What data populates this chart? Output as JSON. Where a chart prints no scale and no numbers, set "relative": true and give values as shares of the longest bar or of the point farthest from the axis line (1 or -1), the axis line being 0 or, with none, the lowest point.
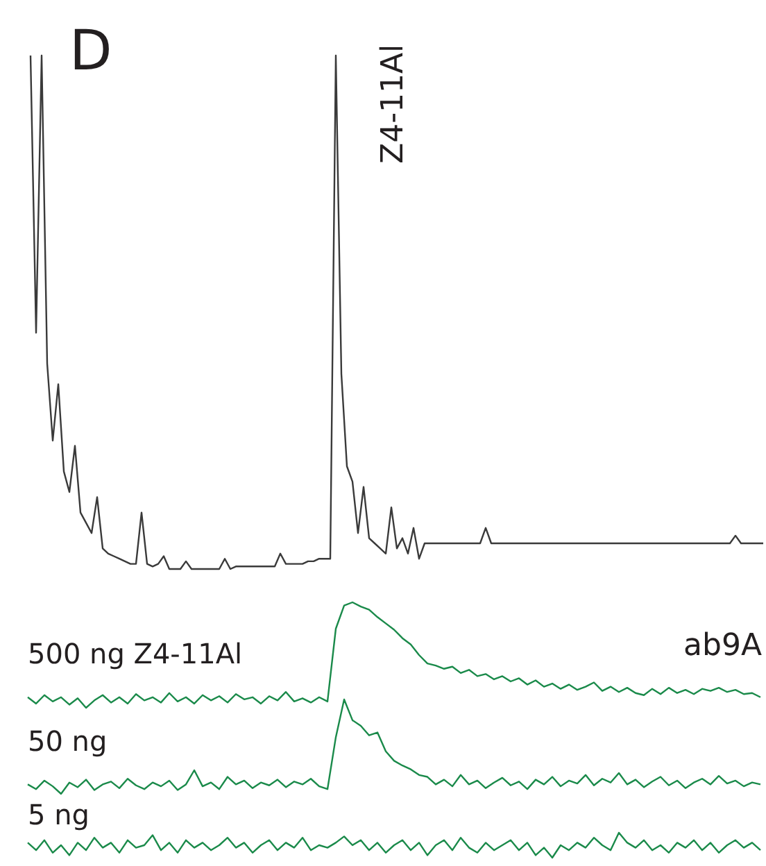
{
  "chart_data": [
    {
      "type": "line",
      "title": "D",
      "annotations": [
        "Z4-11Al"
      ],
      "relative": true,
      "categories": [
        null,
        null,
        null,
        null,
        null,
        null,
        null,
        null,
        null,
        null,
        null,
        null,
        null,
        null,
        null,
        null,
        null,
        null,
        null,
        null,
        null,
        null,
        null,
        null,
        null,
        null,
        null,
        null,
        null,
        null,
        null,
        null,
        null,
        null,
        null,
        null,
        null,
        null,
        null,
        null,
        null,
        null,
        null,
        null,
        null,
        null,
        null,
        null,
        null,
        null,
        null,
        null,
        null,
        null,
        null,
        null,
        null,
        null,
        null,
        null,
        null,
        null,
        null,
        null,
        null,
        null,
        null,
        null,
        null,
        null,
        null,
        null,
        null,
        null,
        null,
        null,
        null,
        null,
        null,
        null,
        null,
        null,
        null,
        null,
        null,
        null,
        null,
        null,
        null,
        null,
        null,
        null,
        null,
        null,
        null,
        null,
        null,
        null,
        null,
        null,
        null,
        null,
        null,
        null,
        null,
        null,
        null,
        null,
        null,
        null,
        null,
        null,
        null,
        null,
        null,
        null,
        null,
        null,
        null,
        null,
        null,
        null,
        null,
        null,
        null,
        null,
        null,
        null,
        null,
        null,
        null,
        null,
        null
      ],
      "series": [
        {
          "color": "#3a3a3a",
          "values": [
            1,
            0.46,
            1,
            0.4,
            0.25,
            0.36,
            0.19,
            0.15,
            0.24,
            0.11,
            0.09,
            0.07,
            0.14,
            0.04,
            0.03,
            0.025,
            0.02,
            0.015,
            0.01,
            0.01,
            0.11,
            0.01,
            0.005,
            0.01,
            0.025,
            0,
            0,
            0,
            0.015,
            0,
            0,
            0,
            0,
            0,
            0,
            0.02,
            0,
            0.005,
            0.005,
            0.005,
            0.005,
            0.005,
            0.005,
            0.005,
            0.005,
            0.03,
            0.01,
            0.01,
            0.01,
            0.01,
            0.015,
            0.015,
            0.02,
            0.02,
            0.02,
            1,
            0.38,
            0.2,
            0.17,
            0.07,
            0.16,
            0.06,
            0.05,
            0.04,
            0.03,
            0.12,
            0.04,
            0.06,
            0.03,
            0.08,
            0.02,
            0.05,
            0.05,
            0.05,
            0.05,
            0.05,
            0.05,
            0.05,
            0.05,
            0.05,
            0.05,
            0.05,
            0.08,
            0.05,
            0.05,
            0.05,
            0.05,
            0.05,
            0.05,
            0.05,
            0.05,
            0.05,
            0.05,
            0.05,
            0.05,
            0.05,
            0.05,
            0.05,
            0.05,
            0.05,
            0.05,
            0.05,
            0.05,
            0.05,
            0.05,
            0.05,
            0.05,
            0.05,
            0.05,
            0.05,
            0.05,
            0.05,
            0.05,
            0.05,
            0.05,
            0.05,
            0.05,
            0.05,
            0.05,
            0.05,
            0.05,
            0.05,
            0.05,
            0.05,
            0.05,
            0.05,
            0.05,
            0.065,
            0.05,
            0.05,
            0.05,
            0.05,
            0.05
          ]
        }
      ]
    },
    {
      "type": "line",
      "annotations": [
        "ab9A"
      ],
      "relative": true,
      "categories": [
        null,
        null,
        null,
        null,
        null,
        null,
        null,
        null,
        null,
        null,
        null,
        null,
        null,
        null,
        null,
        null,
        null,
        null,
        null,
        null,
        null,
        null,
        null,
        null,
        null,
        null,
        null,
        null,
        null,
        null,
        null,
        null,
        null,
        null,
        null,
        null,
        null,
        null,
        null,
        null,
        null,
        null,
        null,
        null,
        null,
        null,
        null,
        null,
        null,
        null,
        null,
        null,
        null,
        null,
        null,
        null,
        null,
        null,
        null,
        null,
        null,
        null,
        null,
        null,
        null,
        null,
        null,
        null,
        null,
        null,
        null,
        null,
        null,
        null,
        null,
        null,
        null,
        null,
        null,
        null,
        null,
        null,
        null,
        null,
        null,
        null,
        null,
        null,
        null
      ],
      "series": [
        {
          "name": "500 ng Z4-11Al",
          "color": "#1a8a4a",
          "values": [
            0.1,
            0.04,
            0.12,
            0.06,
            0.1,
            0.03,
            0.09,
            0,
            0.07,
            0.12,
            0.05,
            0.1,
            0.04,
            0.13,
            0.07,
            0.1,
            0.05,
            0.14,
            0.06,
            0.1,
            0.04,
            0.12,
            0.07,
            0.11,
            0.05,
            0.13,
            0.08,
            0.1,
            0.04,
            0.11,
            0.07,
            0.15,
            0.06,
            0.09,
            0.05,
            0.1,
            0.06,
            0.75,
            0.97,
            1,
            0.96,
            0.93,
            0.86,
            0.8,
            0.74,
            0.66,
            0.6,
            0.5,
            0.42,
            0.4,
            0.37,
            0.39,
            0.33,
            0.36,
            0.3,
            0.32,
            0.27,
            0.3,
            0.25,
            0.28,
            0.22,
            0.26,
            0.2,
            0.23,
            0.18,
            0.22,
            0.17,
            0.2,
            0.24,
            0.16,
            0.2,
            0.15,
            0.19,
            0.14,
            0.12,
            0.18,
            0.13,
            0.19,
            0.14,
            0.17,
            0.13,
            0.18,
            0.16,
            0.19,
            0.15,
            0.17,
            0.13,
            0.14,
            0.1
          ]
        }
      ]
    },
    {
      "type": "line",
      "relative": true,
      "categories": [
        null,
        null,
        null,
        null,
        null,
        null,
        null,
        null,
        null,
        null,
        null,
        null,
        null,
        null,
        null,
        null,
        null,
        null,
        null,
        null,
        null,
        null,
        null,
        null,
        null,
        null,
        null,
        null,
        null,
        null,
        null,
        null,
        null,
        null,
        null,
        null,
        null,
        null,
        null,
        null,
        null,
        null,
        null,
        null,
        null,
        null,
        null,
        null,
        null,
        null,
        null,
        null,
        null,
        null,
        null,
        null,
        null,
        null,
        null,
        null,
        null,
        null,
        null,
        null,
        null,
        null,
        null,
        null,
        null,
        null,
        null,
        null,
        null,
        null,
        null,
        null,
        null,
        null,
        null,
        null,
        null,
        null,
        null,
        null,
        null,
        null,
        null,
        null,
        null
      ],
      "series": [
        {
          "name": "50 ng",
          "color": "#1a8a4a",
          "values": [
            0.1,
            0.05,
            0.14,
            0.08,
            0,
            0.12,
            0.07,
            0.15,
            0.04,
            0.1,
            0.13,
            0.06,
            0.16,
            0.09,
            0.05,
            0.12,
            0.08,
            0.14,
            0.04,
            0.1,
            0.25,
            0.08,
            0.12,
            0.05,
            0.18,
            0.1,
            0.14,
            0.06,
            0.12,
            0.09,
            0.15,
            0.07,
            0.13,
            0.1,
            0.16,
            0.08,
            0.05,
            0.6,
            1,
            0.78,
            0.72,
            0.62,
            0.65,
            0.45,
            0.35,
            0.3,
            0.26,
            0.2,
            0.18,
            0.1,
            0.15,
            0.08,
            0.2,
            0.1,
            0.14,
            0.06,
            0.12,
            0.17,
            0.09,
            0.13,
            0.05,
            0.15,
            0.1,
            0.18,
            0.08,
            0.14,
            0.11,
            0.2,
            0.09,
            0.16,
            0.12,
            0.22,
            0.1,
            0.15,
            0.07,
            0.13,
            0.18,
            0.09,
            0.14,
            0.06,
            0.12,
            0.16,
            0.1,
            0.19,
            0.11,
            0.14,
            0.08,
            0.12,
            0.1
          ]
        }
      ]
    },
    {
      "type": "line",
      "relative": true,
      "categories": [
        null,
        null,
        null,
        null,
        null,
        null,
        null,
        null,
        null,
        null,
        null,
        null,
        null,
        null,
        null,
        null,
        null,
        null,
        null,
        null,
        null,
        null,
        null,
        null,
        null,
        null,
        null,
        null,
        null,
        null,
        null,
        null,
        null,
        null,
        null,
        null,
        null,
        null,
        null,
        null,
        null,
        null,
        null,
        null,
        null,
        null,
        null,
        null,
        null,
        null,
        null,
        null,
        null,
        null,
        null,
        null,
        null,
        null,
        null,
        null,
        null,
        null,
        null,
        null,
        null,
        null,
        null,
        null,
        null,
        null,
        null,
        null,
        null,
        null,
        null,
        null,
        null,
        null,
        null,
        null,
        null,
        null,
        null,
        null,
        null,
        null,
        null,
        null,
        null
      ],
      "series": [
        {
          "name": "5 ng",
          "color": "#1a8a4a",
          "values": [
            0.6,
            0.3,
            0.7,
            0.2,
            0.5,
            0.1,
            0.6,
            0.3,
            0.8,
            0.4,
            0.6,
            0.2,
            0.7,
            0.4,
            0.5,
            0.9,
            0.3,
            0.6,
            0.2,
            0.7,
            0.4,
            0.6,
            0.3,
            0.5,
            0.8,
            0.4,
            0.6,
            0.2,
            0.5,
            0.7,
            0.3,
            0.6,
            0.4,
            0.8,
            0.3,
            0.5,
            0.4,
            0.6,
            0.85,
            0.5,
            0.7,
            0.3,
            0.6,
            0.2,
            0.5,
            0.7,
            0.3,
            0.6,
            0.1,
            0.5,
            0.7,
            0.3,
            0.8,
            0.4,
            0.2,
            0.6,
            0.3,
            0.5,
            0.7,
            0.3,
            0.6,
            0.1,
            0.4,
            0.0,
            0.5,
            0.3,
            0.6,
            0.4,
            0.8,
            0.5,
            0.3,
            1,
            0.6,
            0.4,
            0.7,
            0.3,
            0.5,
            0.2,
            0.6,
            0.4,
            0.7,
            0.3,
            0.6,
            0.2,
            0.5,
            0.7,
            0.4,
            0.6,
            0.3
          ]
        }
      ]
    }
  ]
}
